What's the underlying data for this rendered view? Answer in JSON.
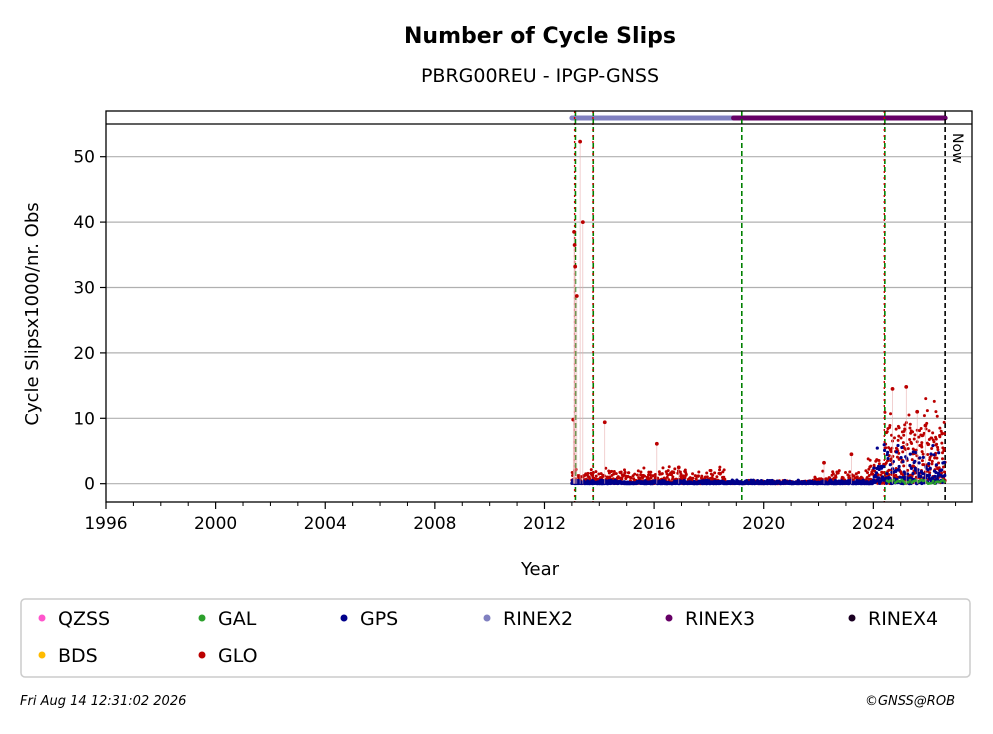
{
  "chart_data": {
    "type": "scatter",
    "title": "Number of Cycle Slips",
    "subtitle": "PBRG00REU - IPGP-GNSS",
    "xlabel": "Year",
    "ylabel": "Cycle Slipsx1000/nr. Obs",
    "xlim": [
      1996,
      2027.6
    ],
    "ylim": [
      -2.8,
      55
    ],
    "x_ticks": [
      "1996",
      "2000",
      "2004",
      "2008",
      "2012",
      "2016",
      "2020",
      "2024"
    ],
    "x_tick_values": [
      1996,
      2000,
      2004,
      2008,
      2012,
      2016,
      2020,
      2024
    ],
    "y_ticks": [
      "0",
      "10",
      "20",
      "30",
      "40",
      "50"
    ],
    "y_tick_values": [
      0,
      10,
      20,
      30,
      40,
      50
    ],
    "grid": "horizontal",
    "now_label": "Now",
    "now_x": 2026.62,
    "green_events": [
      2013.13,
      2013.78,
      2019.2,
      2024.42
    ],
    "red_events": [
      2013.1,
      2013.77,
      2024.4
    ],
    "rinex_bars": [
      {
        "name": "RINEX2",
        "x0": 2013.0,
        "x1": 2019.0,
        "color": "#8080c0"
      },
      {
        "name": "RINEX3",
        "x0": 2018.9,
        "x1": 2026.62,
        "color": "#660066"
      }
    ],
    "glo_peaks": [
      [
        2013.05,
        9.8
      ],
      [
        2013.08,
        38.5
      ],
      [
        2013.1,
        36.5
      ],
      [
        2013.12,
        33.2
      ],
      [
        2013.18,
        28.7
      ],
      [
        2013.3,
        52.3
      ],
      [
        2013.4,
        40.0
      ],
      [
        2014.2,
        9.4
      ],
      [
        2016.1,
        6.1
      ],
      [
        2016.9,
        2.5
      ],
      [
        2022.2,
        3.2
      ],
      [
        2023.2,
        4.5
      ],
      [
        2024.7,
        14.5
      ],
      [
        2025.2,
        14.8
      ],
      [
        2025.6,
        11.0
      ],
      [
        2025.9,
        8.9
      ]
    ],
    "series": [
      {
        "name": "QZSS",
        "color": "#ff55cc"
      },
      {
        "name": "GAL",
        "color": "#2ca02c"
      },
      {
        "name": "GPS",
        "color": "#00008b"
      },
      {
        "name": "RINEX2",
        "color": "#8080c0"
      },
      {
        "name": "RINEX3",
        "color": "#660066"
      },
      {
        "name": "RINEX4",
        "color": "#1a0022"
      },
      {
        "name": "BDS",
        "color": "#ffbb00"
      },
      {
        "name": "GLO",
        "color": "#bb0000"
      }
    ]
  },
  "footer": {
    "date": "Fri Aug 14 12:31:02 2026",
    "credit": "©GNSS@ROB"
  }
}
